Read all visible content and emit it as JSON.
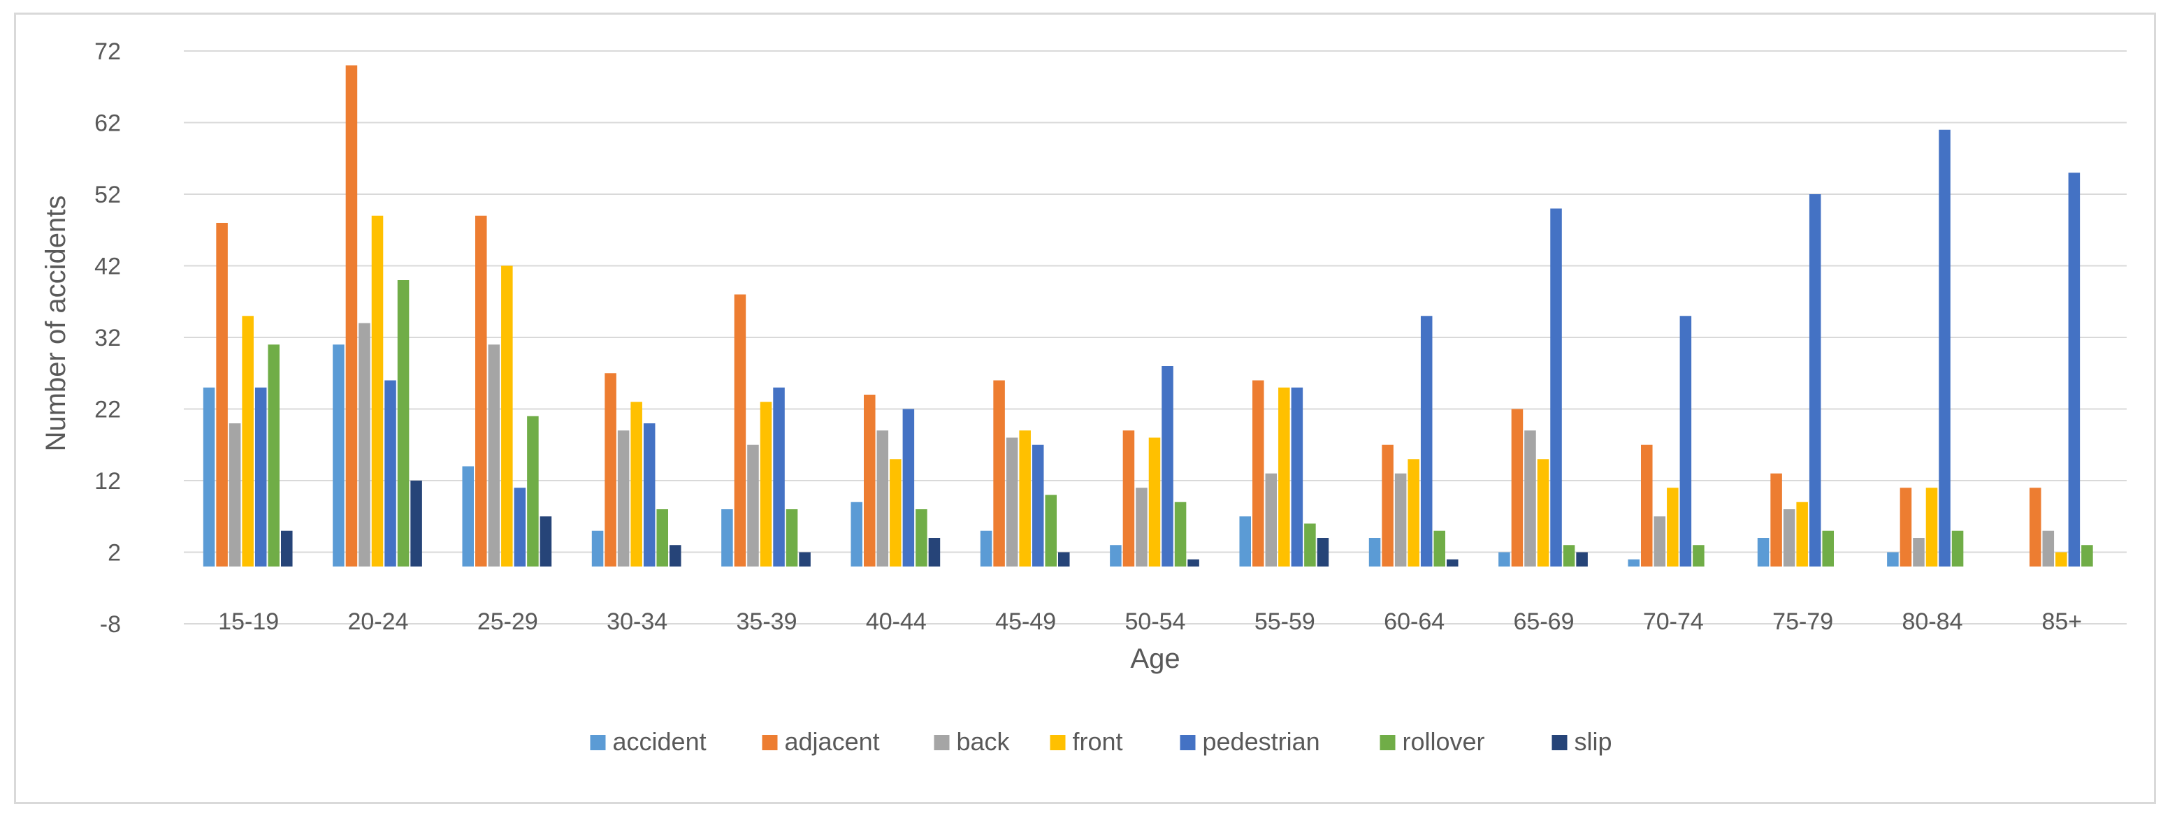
{
  "chart_data": {
    "type": "bar",
    "title": "",
    "xlabel": "Age",
    "ylabel": "Number of accidents",
    "ylim": [
      -8,
      72
    ],
    "yticks": [
      -8,
      2,
      12,
      22,
      32,
      42,
      52,
      62,
      72
    ],
    "grid": true,
    "legend_position": "bottom",
    "categories": [
      "15-19",
      "20-24",
      "25-29",
      "30-34",
      "35-39",
      "40-44",
      "45-49",
      "50-54",
      "55-59",
      "60-64",
      "65-69",
      "70-74",
      "75-79",
      "80-84",
      "85+"
    ],
    "series": [
      {
        "name": "accident",
        "color": "#5b9bd5",
        "values": [
          25,
          31,
          14,
          5,
          8,
          9,
          5,
          3,
          7,
          4,
          2,
          1,
          4,
          2,
          0
        ]
      },
      {
        "name": "adjacent",
        "color": "#ed7d31",
        "values": [
          48,
          70,
          49,
          27,
          38,
          24,
          26,
          19,
          26,
          17,
          22,
          17,
          13,
          11,
          11
        ]
      },
      {
        "name": "back",
        "color": "#a5a5a5",
        "values": [
          20,
          34,
          31,
          19,
          17,
          19,
          18,
          11,
          13,
          13,
          19,
          7,
          8,
          4,
          5
        ]
      },
      {
        "name": "front",
        "color": "#ffc000",
        "values": [
          35,
          49,
          42,
          23,
          23,
          15,
          19,
          18,
          25,
          15,
          15,
          11,
          9,
          11,
          2
        ]
      },
      {
        "name": "pedestrian",
        "color": "#4472c4",
        "values": [
          25,
          26,
          11,
          20,
          25,
          22,
          17,
          28,
          25,
          35,
          50,
          35,
          52,
          61,
          55
        ]
      },
      {
        "name": "rollover",
        "color": "#70ad47",
        "values": [
          31,
          40,
          21,
          8,
          8,
          8,
          10,
          9,
          6,
          5,
          3,
          3,
          5,
          5,
          3
        ]
      },
      {
        "name": "slip",
        "color": "#264478",
        "values": [
          5,
          12,
          7,
          3,
          2,
          4,
          2,
          1,
          4,
          1,
          2,
          0,
          0,
          0,
          0
        ]
      }
    ]
  }
}
